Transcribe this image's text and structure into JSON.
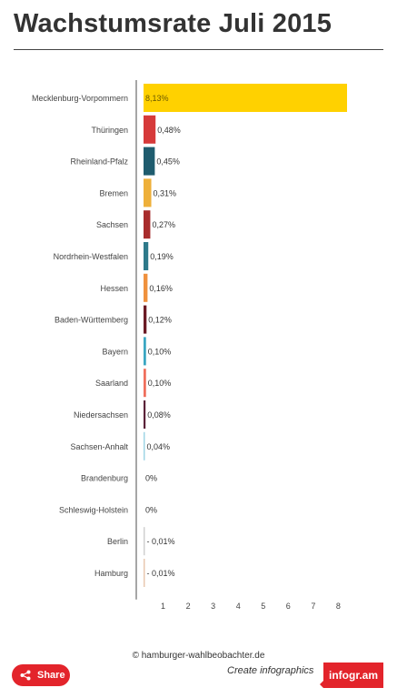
{
  "title": "Wachstumsrate Juli 2015",
  "footer": {
    "credit": "© hamburger-wahlbeobachter.de",
    "share_label": "Share",
    "create_label": "Create infographics",
    "brand_label": "infogr.am"
  },
  "colors": {
    "brand": "#e3242b",
    "axis": "#888888"
  },
  "chart_data": {
    "type": "bar",
    "orientation": "horizontal",
    "title": "Wachstumsrate Juli 2015",
    "xlabel": "",
    "ylabel": "",
    "xlim": [
      0,
      8
    ],
    "x_ticks": [
      1,
      2,
      3,
      4,
      5,
      6,
      7,
      8
    ],
    "grid": false,
    "categories": [
      "Mecklenburg-Vorpommern",
      "Thüringen",
      "Rheinland-Pfalz",
      "Bremen",
      "Sachsen",
      "Nordrhein-Westfalen",
      "Hessen",
      "Baden-Württemberg",
      "Bayern",
      "Saarland",
      "Niedersachsen",
      "Sachsen-Anhalt",
      "Brandenburg",
      "Schleswig-Holstein",
      "Berlin",
      "Hamburg"
    ],
    "values": [
      8.13,
      0.48,
      0.45,
      0.31,
      0.27,
      0.19,
      0.16,
      0.12,
      0.1,
      0.1,
      0.08,
      0.04,
      0,
      0,
      -0.01,
      -0.01
    ],
    "labels": [
      "8,13%",
      "0,48%",
      "0,45%",
      "0,31%",
      "0,27%",
      "0,19%",
      "0,16%",
      "0,12%",
      "0,10%",
      "0,10%",
      "0,08%",
      "0,04%",
      "0%",
      "0%",
      "- 0,01%",
      "- 0,01%"
    ],
    "colors": [
      "#ffd100",
      "#d63a3a",
      "#1f5c6e",
      "#eeb03a",
      "#a82c2c",
      "#2e7a8a",
      "#ef913d",
      "#6a1a24",
      "#3aa6c2",
      "#ef6f5c",
      "#5a2238",
      "#9fd5e6",
      "#cccccc",
      "#cccccc",
      "#d0d0d0",
      "#e8c8b0"
    ]
  }
}
